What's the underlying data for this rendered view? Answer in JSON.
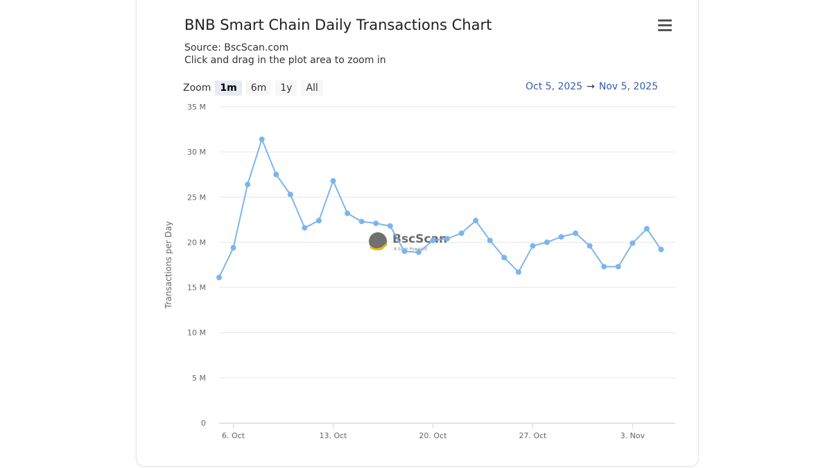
{
  "header": {
    "title": "BNB Smart Chain Daily Transactions Chart",
    "source": "Source: BscScan.com",
    "hint": "Click and drag in the plot area to zoom in"
  },
  "toolbar": {
    "zoom_label": "Zoom",
    "zoom_options": [
      "1m",
      "6m",
      "1y",
      "All"
    ],
    "active_zoom": "1m",
    "range_from": "Oct 5, 2025",
    "range_arrow": "→",
    "range_to": "Nov 5, 2025",
    "menu_icon": "hamburger-menu-icon"
  },
  "watermark": {
    "name": "BscScan",
    "tagline": "A Scan Powered"
  },
  "colors": {
    "series": "#7cb5ec",
    "grid": "#e6e6e6",
    "range_text": "#335cad",
    "watermark_icon": "#707070",
    "watermark_accent": "#f0b90b"
  },
  "chart_data": {
    "type": "line",
    "title": "BNB Smart Chain Daily Transactions Chart",
    "subtitle": "Source: BscScan.com",
    "ylabel": "Transactions per Day",
    "xlabel": "",
    "ylim": [
      0,
      35000000
    ],
    "yticks": [
      0,
      5000000,
      10000000,
      15000000,
      20000000,
      25000000,
      30000000,
      35000000
    ],
    "ytick_labels": [
      "0",
      "5 M",
      "10 M",
      "15 M",
      "20 M",
      "25 M",
      "30 M",
      "35 M"
    ],
    "xlim": [
      "2025-10-05",
      "2025-11-06"
    ],
    "xticks": [
      "2025-10-06",
      "2025-10-13",
      "2025-10-20",
      "2025-10-27",
      "2025-11-03"
    ],
    "xtick_labels": [
      "6. Oct",
      "13. Oct",
      "20. Oct",
      "27. Oct",
      "3. Nov"
    ],
    "grid": true,
    "legend": "none",
    "series": [
      {
        "x": [
          "2025-10-05",
          "2025-10-06",
          "2025-10-07",
          "2025-10-08",
          "2025-10-09",
          "2025-10-10",
          "2025-10-11",
          "2025-10-12",
          "2025-10-13",
          "2025-10-14",
          "2025-10-15",
          "2025-10-16",
          "2025-10-17",
          "2025-10-18",
          "2025-10-19",
          "2025-10-20",
          "2025-10-21",
          "2025-10-22",
          "2025-10-23",
          "2025-10-24",
          "2025-10-25",
          "2025-10-26",
          "2025-10-27",
          "2025-10-28",
          "2025-10-29",
          "2025-10-30",
          "2025-10-31",
          "2025-11-01",
          "2025-11-02",
          "2025-11-03",
          "2025-11-04",
          "2025-11-05"
        ],
        "values": [
          16100000,
          19400000,
          26400000,
          31400000,
          27500000,
          25300000,
          21600000,
          22400000,
          26800000,
          23200000,
          22300000,
          22100000,
          21800000,
          19000000,
          18900000,
          20200000,
          20400000,
          21000000,
          22400000,
          20200000,
          18300000,
          16700000,
          19600000,
          20000000,
          20600000,
          21000000,
          19600000,
          17300000,
          17300000,
          19900000,
          21500000,
          19200000
        ]
      }
    ]
  }
}
